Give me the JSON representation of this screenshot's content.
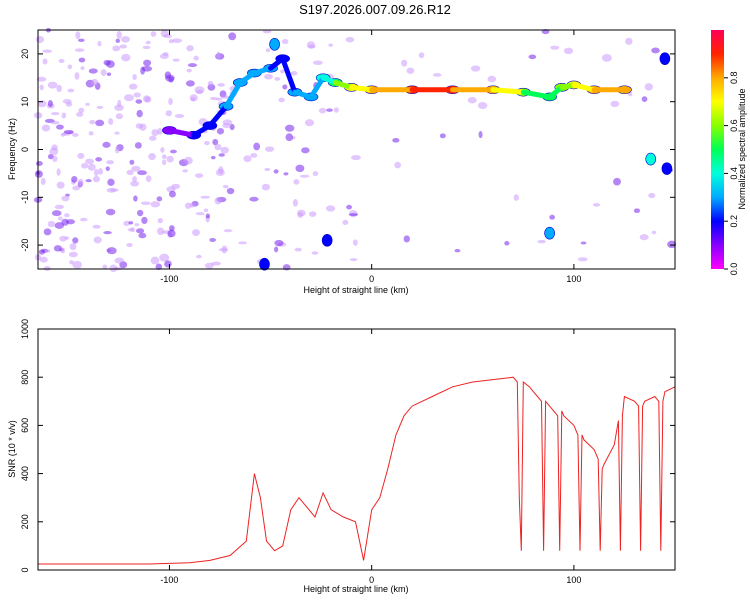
{
  "title": "S197.2026.007.09.26.R12",
  "chart_data": [
    {
      "type": "heatmap",
      "xlabel": "Height of straight line (km)",
      "ylabel": "Frequency (Hz)",
      "xlim": [
        -165,
        150
      ],
      "ylim": [
        -25,
        25
      ],
      "xticks": [
        -100,
        0,
        100
      ],
      "yticks": [
        -20,
        -10,
        0,
        10,
        20
      ],
      "colorbar": {
        "label": "Normalized spectral amplitude",
        "range": [
          0,
          1
        ],
        "ticks": [
          0.0,
          0.2,
          0.4,
          0.6,
          0.8
        ],
        "colormap": [
          "#ff00ff",
          "#8800ff",
          "#0000ff",
          "#00aaff",
          "#00ffdd",
          "#00ff55",
          "#88ff00",
          "#ffff00",
          "#ffaa00",
          "#ff2200",
          "#ff0055"
        ]
      },
      "ridge": {
        "x": [
          -100,
          -88,
          -80,
          -72,
          -65,
          -58,
          -50,
          -44,
          -38,
          -30,
          -24,
          -18,
          -10,
          0,
          20,
          40,
          60,
          75,
          88,
          94,
          100,
          110,
          125
        ],
        "freq": [
          4,
          3,
          5,
          9,
          14,
          16,
          17,
          19,
          12,
          11,
          15,
          14,
          13,
          12.5,
          12.5,
          12.5,
          12.5,
          12,
          11,
          13,
          13.5,
          12.5,
          12.5
        ],
        "amp": [
          0.15,
          0.2,
          0.25,
          0.3,
          0.35,
          0.3,
          0.3,
          0.25,
          0.3,
          0.3,
          0.45,
          0.5,
          0.7,
          0.8,
          0.9,
          0.9,
          0.8,
          0.6,
          0.5,
          0.6,
          0.7,
          0.8,
          0.8
        ]
      },
      "spots": [
        {
          "x": -48,
          "freq": 22,
          "amp": 0.3
        },
        {
          "x": -22,
          "freq": -19,
          "amp": 0.2
        },
        {
          "x": 88,
          "freq": -17.5,
          "amp": 0.35
        },
        {
          "x": 138,
          "freq": -2,
          "amp": 0.4
        },
        {
          "x": 146,
          "freq": -4,
          "amp": 0.25
        },
        {
          "x": 145,
          "freq": 19,
          "amp": 0.25
        },
        {
          "x": -53,
          "freq": -24,
          "amp": 0.2
        }
      ]
    },
    {
      "type": "line",
      "xlabel": "Height of straight line (km)",
      "ylabel": "SNR (10 * v/v)",
      "xlim": [
        -165,
        150
      ],
      "ylim": [
        0,
        1000
      ],
      "xticks": [
        -100,
        0,
        100
      ],
      "yticks": [
        0,
        200,
        400,
        600,
        800,
        1000
      ],
      "series": [
        {
          "name": "SNR",
          "color": "#ee2222",
          "x": [
            -165,
            -150,
            -130,
            -110,
            -90,
            -80,
            -70,
            -62,
            -58,
            -55,
            -52,
            -48,
            -44,
            -40,
            -36,
            -32,
            -28,
            -24,
            -20,
            -14,
            -8,
            -4,
            0,
            4,
            8,
            12,
            16,
            20,
            30,
            40,
            50,
            60,
            70,
            72,
            73,
            74,
            75,
            78,
            80,
            82,
            84,
            85,
            86,
            90,
            92,
            93,
            94,
            95,
            100,
            102,
            103,
            104,
            105,
            110,
            112,
            113,
            114,
            115,
            120,
            122,
            123,
            124,
            125,
            130,
            132,
            133,
            134,
            135,
            140,
            142,
            143,
            144,
            145,
            150
          ],
          "values": [
            25,
            25,
            25,
            25,
            30,
            40,
            60,
            120,
            400,
            300,
            120,
            80,
            100,
            250,
            300,
            260,
            220,
            320,
            250,
            220,
            200,
            40,
            250,
            300,
            420,
            560,
            640,
            680,
            720,
            760,
            780,
            790,
            800,
            780,
            300,
            80,
            780,
            760,
            740,
            720,
            700,
            80,
            700,
            660,
            640,
            80,
            660,
            640,
            600,
            560,
            80,
            560,
            540,
            500,
            460,
            80,
            420,
            440,
            520,
            620,
            80,
            640,
            720,
            700,
            680,
            80,
            680,
            700,
            720,
            700,
            80,
            700,
            740,
            760
          ]
        }
      ]
    }
  ]
}
